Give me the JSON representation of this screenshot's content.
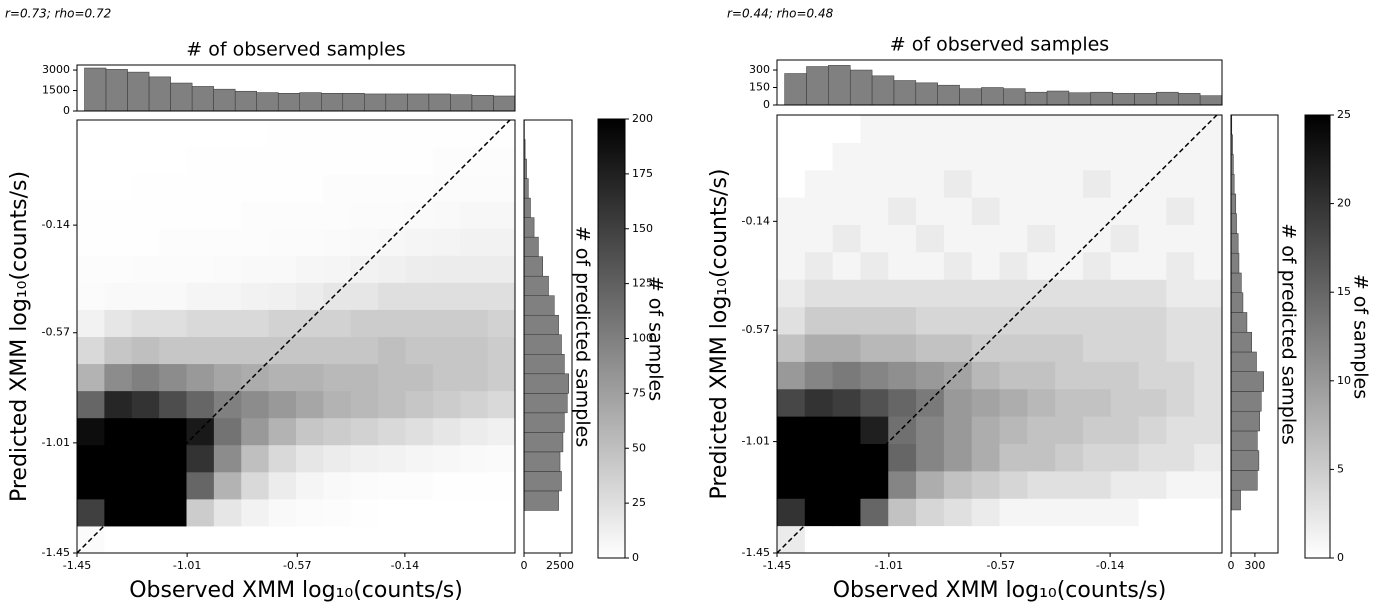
{
  "chart_data": [
    {
      "type": "heatmap",
      "annotation": "r=0.73; rho=0.72",
      "title": "# of observed samples",
      "xlabel": "Observed XMM log₁₀(counts/s)",
      "ylabel": "Predicted XMM log₁₀(counts/s)",
      "right_label": "# of predicted samples",
      "colorbar_label": "# of samples",
      "xlim": [
        -1.45,
        0.3
      ],
      "ylim": [
        -1.45,
        0.28
      ],
      "xticks": [
        -1.45,
        -1.01,
        -0.57,
        -0.14
      ],
      "yticks": [
        -1.45,
        -1.01,
        -0.57,
        -0.14
      ],
      "clim": [
        0,
        200
      ],
      "cticks": [
        0,
        25,
        50,
        75,
        100,
        125,
        150,
        175,
        200
      ],
      "z": [
        [
          3,
          0,
          0,
          0,
          0,
          0,
          0,
          0,
          0,
          0,
          0,
          0,
          0,
          0,
          0,
          0
        ],
        [
          150,
          200,
          200,
          200,
          40,
          20,
          10,
          5,
          3,
          2,
          1,
          0,
          0,
          0,
          0,
          0
        ],
        [
          200,
          200,
          200,
          200,
          120,
          60,
          30,
          15,
          8,
          5,
          3,
          2,
          2,
          1,
          1,
          1
        ],
        [
          200,
          200,
          200,
          200,
          160,
          90,
          50,
          30,
          20,
          15,
          12,
          10,
          8,
          6,
          5,
          4
        ],
        [
          190,
          200,
          200,
          200,
          180,
          110,
          80,
          60,
          45,
          40,
          35,
          30,
          25,
          20,
          15,
          12
        ],
        [
          120,
          170,
          160,
          140,
          120,
          100,
          90,
          80,
          70,
          60,
          55,
          50,
          45,
          40,
          35,
          30
        ],
        [
          60,
          90,
          100,
          90,
          80,
          70,
          65,
          60,
          60,
          55,
          55,
          50,
          50,
          45,
          45,
          40
        ],
        [
          30,
          45,
          50,
          45,
          45,
          45,
          45,
          45,
          45,
          45,
          45,
          50,
          45,
          45,
          45,
          40
        ],
        [
          10,
          20,
          25,
          25,
          30,
          30,
          30,
          35,
          35,
          35,
          40,
          40,
          40,
          40,
          40,
          35
        ],
        [
          3,
          5,
          5,
          5,
          8,
          8,
          10,
          12,
          15,
          20,
          20,
          25,
          25,
          25,
          25,
          25
        ],
        [
          2,
          2,
          3,
          3,
          3,
          4,
          5,
          5,
          7,
          8,
          10,
          12,
          14,
          15,
          15,
          15
        ],
        [
          1,
          1,
          1,
          2,
          2,
          2,
          2,
          3,
          3,
          4,
          5,
          6,
          8,
          9,
          10,
          10
        ],
        [
          1,
          1,
          1,
          1,
          1,
          1,
          2,
          2,
          2,
          2,
          3,
          3,
          4,
          5,
          6,
          6
        ],
        [
          0,
          0,
          1,
          1,
          1,
          1,
          1,
          1,
          1,
          2,
          2,
          2,
          2,
          3,
          3,
          3
        ],
        [
          0,
          0,
          0,
          0,
          1,
          1,
          1,
          1,
          1,
          1,
          1,
          1,
          1,
          2,
          2,
          2
        ],
        [
          0,
          0,
          0,
          0,
          0,
          0,
          0,
          1,
          1,
          1,
          1,
          1,
          1,
          1,
          1,
          1
        ]
      ],
      "top_hist": {
        "color": "#808080",
        "ylim": [
          0,
          3370
        ],
        "yticks": [
          0,
          1500,
          3000
        ],
        "bins": [
          -1.42,
          -1.334,
          -1.248,
          -1.162,
          -1.076,
          -0.99,
          -0.904,
          -0.818,
          -0.732,
          -0.646,
          -0.56,
          -0.474,
          -0.388,
          -0.302,
          -0.216,
          -0.13,
          -0.044,
          0.042,
          0.128,
          0.214,
          0.3
        ],
        "values": [
          3150,
          3050,
          2850,
          2500,
          2050,
          1800,
          1600,
          1450,
          1350,
          1300,
          1350,
          1300,
          1300,
          1250,
          1250,
          1250,
          1250,
          1200,
          1150,
          1100
        ]
      },
      "right_hist": {
        "color": "#808080",
        "xlim": [
          0,
          3330
        ],
        "xticks": [
          0,
          2500
        ],
        "bins": [
          -1.28,
          -1.202,
          -1.124,
          -1.046,
          -0.968,
          -0.89,
          -0.812,
          -0.734,
          -0.656,
          -0.578,
          -0.5,
          -0.422,
          -0.344,
          -0.266,
          -0.188,
          -0.11,
          -0.032,
          0.046,
          0.124,
          0.202,
          0.28
        ],
        "values": [
          2400,
          2600,
          2500,
          2700,
          2800,
          3000,
          3100,
          2800,
          2600,
          2400,
          2100,
          1700,
          1300,
          1000,
          700,
          450,
          300,
          180,
          80,
          30
        ]
      }
    },
    {
      "type": "heatmap",
      "annotation": "r=0.44; rho=0.48",
      "title": "# of observed samples",
      "xlabel": "Observed XMM log₁₀(counts/s)",
      "ylabel": "Predicted XMM log₁₀(counts/s)",
      "right_label": "# of predicted samples",
      "colorbar_label": "# of samples",
      "xlim": [
        -1.45,
        0.3
      ],
      "ylim": [
        -1.45,
        0.28
      ],
      "xticks": [
        -1.45,
        -1.01,
        -0.57,
        -0.14
      ],
      "yticks": [
        -1.45,
        -1.01,
        -0.57,
        -0.14
      ],
      "clim": [
        0,
        25
      ],
      "cticks": [
        0,
        5,
        10,
        15,
        20,
        25
      ],
      "z": [
        [
          2,
          0,
          0,
          0,
          0,
          0,
          0,
          0,
          0,
          0,
          0,
          0,
          0,
          0,
          0,
          0
        ],
        [
          20,
          25,
          25,
          15,
          6,
          4,
          3,
          2,
          1,
          1,
          1,
          1,
          1,
          0,
          0,
          0
        ],
        [
          25,
          25,
          25,
          25,
          12,
          8,
          6,
          5,
          4,
          3,
          3,
          3,
          2,
          2,
          1,
          1
        ],
        [
          25,
          25,
          25,
          25,
          15,
          12,
          10,
          8,
          6,
          6,
          5,
          4,
          4,
          3,
          3,
          2
        ],
        [
          25,
          25,
          25,
          22,
          14,
          12,
          10,
          8,
          7,
          6,
          6,
          5,
          5,
          4,
          3,
          3
        ],
        [
          18,
          20,
          19,
          17,
          15,
          13,
          10,
          9,
          8,
          7,
          6,
          6,
          5,
          5,
          4,
          3
        ],
        [
          10,
          12,
          13,
          12,
          11,
          10,
          9,
          7,
          6,
          6,
          5,
          5,
          5,
          4,
          4,
          3
        ],
        [
          6,
          8,
          8,
          7,
          7,
          6,
          6,
          5,
          5,
          5,
          5,
          4,
          4,
          4,
          3,
          3
        ],
        [
          3,
          5,
          5,
          5,
          5,
          4,
          4,
          4,
          4,
          4,
          4,
          4,
          4,
          4,
          3,
          3
        ],
        [
          2,
          3,
          3,
          3,
          3,
          3,
          3,
          3,
          3,
          3,
          3,
          3,
          3,
          3,
          2,
          2
        ],
        [
          1,
          2,
          1,
          2,
          1,
          1,
          2,
          1,
          2,
          1,
          1,
          2,
          1,
          1,
          2,
          1
        ],
        [
          1,
          1,
          2,
          1,
          1,
          2,
          1,
          1,
          1,
          2,
          1,
          1,
          2,
          1,
          1,
          1
        ],
        [
          1,
          1,
          1,
          1,
          2,
          1,
          1,
          2,
          1,
          1,
          1,
          1,
          1,
          1,
          2,
          1
        ],
        [
          0,
          1,
          1,
          1,
          1,
          1,
          2,
          1,
          1,
          1,
          1,
          2,
          1,
          1,
          1,
          1
        ],
        [
          0,
          0,
          1,
          1,
          1,
          1,
          1,
          1,
          1,
          1,
          1,
          1,
          1,
          1,
          1,
          1
        ],
        [
          0,
          0,
          0,
          1,
          1,
          1,
          1,
          1,
          1,
          1,
          1,
          1,
          1,
          1,
          1,
          1
        ]
      ],
      "top_hist": {
        "color": "#808080",
        "ylim": [
          0,
          386
        ],
        "yticks": [
          0,
          150,
          300
        ],
        "bins": [
          -1.42,
          -1.334,
          -1.248,
          -1.162,
          -1.076,
          -0.99,
          -0.904,
          -0.818,
          -0.732,
          -0.646,
          -0.56,
          -0.474,
          -0.388,
          -0.302,
          -0.216,
          -0.13,
          -0.044,
          0.042,
          0.128,
          0.214,
          0.3
        ],
        "values": [
          270,
          330,
          340,
          300,
          250,
          210,
          190,
          170,
          140,
          150,
          140,
          110,
          120,
          105,
          110,
          100,
          100,
          110,
          100,
          80
        ]
      },
      "right_hist": {
        "color": "#808080",
        "xlim": [
          0,
          590
        ],
        "xticks": [
          0,
          300
        ],
        "bins": [
          -1.28,
          -1.202,
          -1.124,
          -1.046,
          -0.968,
          -0.89,
          -0.812,
          -0.734,
          -0.656,
          -0.578,
          -0.5,
          -0.422,
          -0.344,
          -0.266,
          -0.188,
          -0.11,
          -0.032,
          0.046,
          0.124,
          0.202,
          0.28
        ],
        "values": [
          120,
          330,
          350,
          330,
          360,
          380,
          410,
          320,
          260,
          200,
          150,
          130,
          100,
          90,
          70,
          60,
          40,
          30,
          20,
          10
        ]
      }
    }
  ]
}
